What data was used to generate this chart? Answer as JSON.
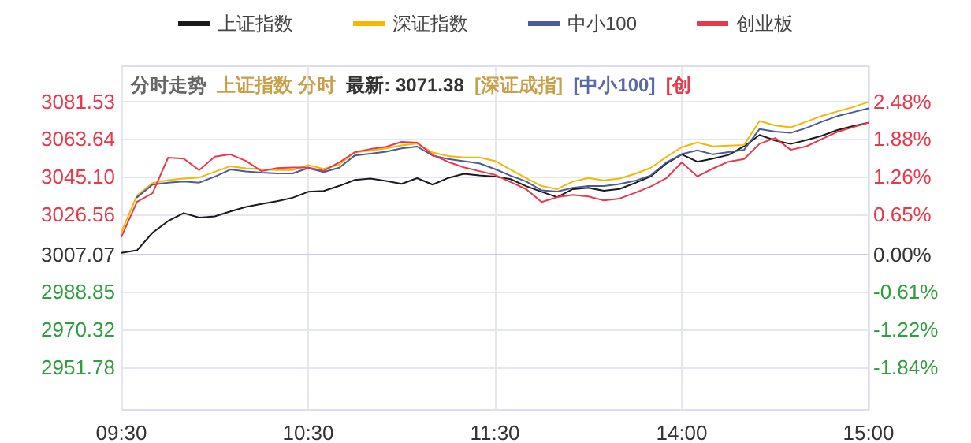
{
  "chart_data": {
    "type": "line",
    "title": "分时走势",
    "annotations": [
      "上证指数 分时",
      "最新: 3071.38",
      "[深证成指]",
      "[中小100]",
      "[创"
    ],
    "categories": [
      "09:30",
      null,
      null,
      null,
      null,
      null,
      null,
      null,
      null,
      null,
      null,
      null,
      "10:30",
      null,
      null,
      null,
      null,
      null,
      null,
      null,
      null,
      null,
      null,
      null,
      "11:30",
      null,
      null,
      null,
      null,
      null,
      null,
      null,
      null,
      null,
      null,
      null,
      "14:00",
      null,
      null,
      null,
      null,
      null,
      null,
      null,
      null,
      null,
      null,
      null,
      "15:00"
    ],
    "ylim": [
      2931,
      3099
    ],
    "yticks": [
      2951.78,
      2970.32,
      2988.85,
      3007.07,
      3026.56,
      {
        "value": 3045.1,
        "label": "3045.10"
      },
      3063.64,
      3081.53
    ],
    "y2lim": [
      -2.53,
      3.06
    ],
    "y2ticks": [
      {
        "value": -1.84,
        "label": "-1.84%"
      },
      {
        "value": -1.22,
        "label": "-1.22%"
      },
      {
        "value": -0.61,
        "label": "-0.61%"
      },
      {
        "value": 0,
        "label": "0.00%"
      },
      {
        "value": 0.65,
        "label": "0.65%"
      },
      {
        "value": 1.26,
        "label": "1.26%"
      },
      {
        "value": 1.88,
        "label": "1.88%"
      },
      {
        "value": 2.48,
        "label": "2.48%"
      }
    ],
    "grid": true,
    "legend": "top",
    "marker": "none",
    "line_style": "solid",
    "series": [
      {
        "name": "上证指数",
        "color": "#1a1a1a",
        "values": [
          3007.8,
          3009,
          3017.6,
          3023.3,
          3027.2,
          3025,
          3025.6,
          3028,
          3030.2,
          3031.7,
          3033,
          3034.7,
          3037.6,
          3038,
          3040.5,
          3043.4,
          3044.1,
          3042.9,
          3041.5,
          3044.3,
          3041.1,
          3044.4,
          3046.4,
          3045.6,
          3045.1,
          3043.8,
          3040.4,
          3037.6,
          3035,
          3038.9,
          3039.6,
          3038.1,
          3039,
          3041.9,
          3045.1,
          3051.4,
          3055.9,
          3052.3,
          3053.8,
          3055.6,
          3059.8,
          3065.4,
          3062.7,
          3061,
          3062.9,
          3065,
          3067.8,
          3069.7,
          3071.4
        ]
      },
      {
        "name": "深证指数",
        "color": "#f5b700",
        "values": [
          3017.9,
          3035.8,
          3041.9,
          3043.3,
          3044.1,
          3044.6,
          3047.4,
          3050.1,
          3049.1,
          3048.6,
          3048.2,
          3048.2,
          3050.7,
          3048.8,
          3050.9,
          3056.9,
          3057.8,
          3058.8,
          3060.3,
          3061.2,
          3056.8,
          3055.1,
          3054.4,
          3054.4,
          3052.7,
          3048.5,
          3044.3,
          3040.4,
          3038.9,
          3042.6,
          3044.4,
          3043.2,
          3044.1,
          3046.4,
          3049.3,
          3054.6,
          3059.4,
          3061.7,
          3059.8,
          3060.2,
          3060.5,
          3072.2,
          3070,
          3069.1,
          3071.9,
          3074.7,
          3076.9,
          3079,
          3081.5
        ]
      },
      {
        "name": "中小100",
        "color": "#4a5a9a",
        "values": [
          null,
          3034.9,
          3041.1,
          3042.1,
          3042.6,
          3042.1,
          3045,
          3048.5,
          3047.6,
          3047,
          3046.6,
          3046.6,
          3049.2,
          3047.3,
          3049.4,
          3055.4,
          3056.2,
          3057.2,
          3058.8,
          3059.7,
          3055.3,
          3053.6,
          3052.6,
          3051.5,
          3048.7,
          3045.5,
          3042.7,
          3038.3,
          3037.7,
          3039.6,
          3040.4,
          3040.4,
          3041.4,
          3043,
          3045.6,
          3051.9,
          3056,
          3057.9,
          3055.9,
          3057,
          3058.1,
          3068.3,
          3067,
          3066.4,
          3068.8,
          3071.9,
          3074.6,
          3076.5,
          3078.4
        ]
      },
      {
        "name": "创业板",
        "color": "#e8394a",
        "values": [
          3015.6,
          3032.7,
          3036.9,
          3054.3,
          3053.8,
          3048.2,
          3054.8,
          3055.9,
          3052.7,
          3047.7,
          3049.2,
          3049.5,
          3049.5,
          3047.9,
          3052,
          3057,
          3058.5,
          3059.6,
          3062,
          3061.6,
          3055.6,
          3052.2,
          3049.6,
          3047.7,
          3045.9,
          3042.4,
          3038.9,
          3032.6,
          3035,
          3036.1,
          3035.3,
          3033.4,
          3034.3,
          3037.1,
          3040.2,
          3044.2,
          3052,
          3045.1,
          3049,
          3052.3,
          3053.6,
          3061.1,
          3063.9,
          3058.1,
          3059.8,
          3063.4,
          3066.9,
          3069.2,
          3071.4
        ]
      }
    ]
  }
}
